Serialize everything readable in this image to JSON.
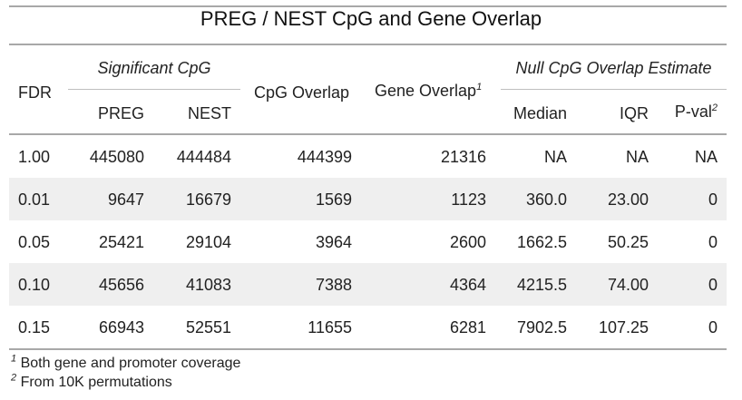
{
  "title": "PREG / NEST CpG and Gene Overlap",
  "headers": {
    "fdr": "FDR",
    "sig_group": "Significant CpG",
    "preg": "PREG",
    "nest": "NEST",
    "cpg_overlap": "CpG Overlap",
    "gene_overlap": "Gene Overlap",
    "gene_overlap_sup": "1",
    "null_group": "Null CpG Overlap Estimate",
    "median": "Median",
    "iqr": "IQR",
    "pval": "P-val",
    "pval_sup": "2"
  },
  "rows": [
    {
      "fdr": "1.00",
      "preg": "445080",
      "nest": "444484",
      "cpg": "444399",
      "gene": "21316",
      "median": "NA",
      "iqr": "NA",
      "pval": "NA"
    },
    {
      "fdr": "0.01",
      "preg": "9647",
      "nest": "16679",
      "cpg": "1569",
      "gene": "1123",
      "median": "360.0",
      "iqr": "23.00",
      "pval": "0"
    },
    {
      "fdr": "0.05",
      "preg": "25421",
      "nest": "29104",
      "cpg": "3964",
      "gene": "2600",
      "median": "1662.5",
      "iqr": "50.25",
      "pval": "0"
    },
    {
      "fdr": "0.10",
      "preg": "45656",
      "nest": "41083",
      "cpg": "7388",
      "gene": "4364",
      "median": "4215.5",
      "iqr": "74.00",
      "pval": "0"
    },
    {
      "fdr": "0.15",
      "preg": "66943",
      "nest": "52551",
      "cpg": "11655",
      "gene": "6281",
      "median": "7902.5",
      "iqr": "107.25",
      "pval": "0"
    }
  ],
  "footnotes": [
    {
      "mark": "1",
      "text": " Both gene and promoter coverage"
    },
    {
      "mark": "2",
      "text": " From 10K permutations"
    }
  ]
}
